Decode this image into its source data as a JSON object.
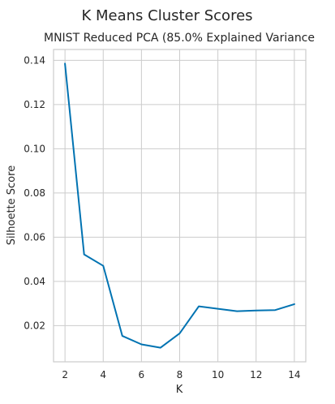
{
  "chart_data": {
    "type": "line",
    "suptitle": "K Means Cluster Scores",
    "title": "MNIST Reduced PCA (85.0% Explained Variance",
    "xlabel": "K",
    "ylabel": "Silhoette Score",
    "x": [
      2,
      3,
      4,
      5,
      6,
      7,
      8,
      9,
      10,
      11,
      12,
      13,
      14
    ],
    "series": [
      {
        "values": [
          0.1385,
          0.0522,
          0.047,
          0.0153,
          0.0115,
          0.01,
          0.0165,
          0.0287,
          0.0276,
          0.0265,
          0.0268,
          0.027,
          0.0297
        ],
        "color": "#0173b2"
      }
    ],
    "xlim": [
      1.4,
      14.6
    ],
    "ylim": [
      0.0036,
      0.1449
    ],
    "xticks": [
      2,
      4,
      6,
      8,
      10,
      12,
      14
    ],
    "yticks": [
      0.02,
      0.04,
      0.06,
      0.08,
      0.1,
      0.12,
      0.14
    ],
    "xtick_labels": [
      "2",
      "4",
      "6",
      "8",
      "10",
      "12",
      "14"
    ],
    "ytick_labels": [
      "0.02",
      "0.04",
      "0.06",
      "0.08",
      "0.10",
      "0.12",
      "0.14"
    ],
    "grid": true,
    "grid_color": "#cccccc"
  }
}
